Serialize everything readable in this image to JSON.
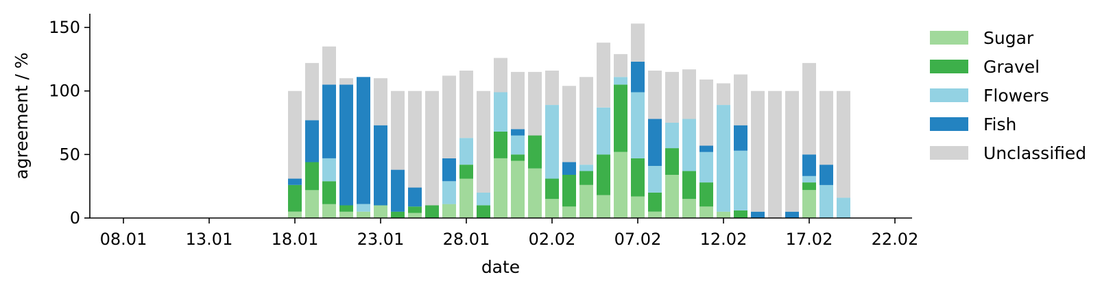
{
  "chart_data": {
    "type": "bar",
    "stacked": true,
    "xlabel": "date",
    "ylabel": "agreement / %",
    "ylim": [
      0,
      160
    ],
    "y_ticks": [
      0,
      50,
      100,
      150
    ],
    "x_ticks": [
      "08.01",
      "13.01",
      "18.01",
      "23.01",
      "28.01",
      "02.02",
      "07.02",
      "12.02",
      "17.02",
      "22.02"
    ],
    "legend_position": "outside-right",
    "categories": [
      "18.01",
      "19.01",
      "20.01",
      "21.01",
      "22.01",
      "23.01",
      "24.01",
      "25.01",
      "26.01",
      "27.01",
      "28.01",
      "29.01",
      "30.01",
      "31.01",
      "01.02",
      "02.02",
      "03.02",
      "04.02",
      "05.02",
      "06.02",
      "07.02",
      "08.02",
      "09.02",
      "10.02",
      "11.02",
      "12.02",
      "13.02",
      "14.02",
      "15.02",
      "16.02",
      "17.02",
      "18.02",
      "19.02"
    ],
    "series": [
      {
        "name": "Sugar",
        "color": "#a1d99b",
        "values": [
          5,
          22,
          11,
          5,
          5,
          10,
          0,
          4,
          0,
          11,
          31,
          0,
          47,
          45,
          39,
          15,
          9,
          26,
          18,
          52,
          17,
          5,
          34,
          15,
          9,
          5,
          0,
          0,
          0,
          0,
          22,
          0,
          0
        ]
      },
      {
        "name": "Gravel",
        "color": "#3db04a",
        "values": [
          21,
          22,
          18,
          5,
          0,
          0,
          5,
          5,
          10,
          0,
          11,
          10,
          21,
          5,
          26,
          16,
          25,
          11,
          32,
          53,
          30,
          15,
          21,
          22,
          19,
          0,
          6,
          0,
          0,
          0,
          6,
          0,
          0
        ]
      },
      {
        "name": "Flowers",
        "color": "#93d2e3",
        "values": [
          0,
          0,
          18,
          0,
          6,
          0,
          0,
          0,
          0,
          18,
          21,
          10,
          31,
          15,
          0,
          58,
          0,
          5,
          37,
          6,
          52,
          21,
          20,
          41,
          24,
          84,
          47,
          0,
          0,
          0,
          5,
          26,
          16
        ]
      },
      {
        "name": "Fish",
        "color": "#2383c1",
        "values": [
          5,
          33,
          58,
          95,
          100,
          63,
          33,
          15,
          0,
          18,
          0,
          0,
          0,
          5,
          0,
          0,
          10,
          0,
          0,
          0,
          24,
          37,
          0,
          0,
          5,
          0,
          20,
          5,
          0,
          5,
          17,
          16,
          0
        ]
      },
      {
        "name": "Unclassified",
        "color": "#d3d3d3",
        "values": [
          69,
          45,
          30,
          5,
          0,
          37,
          62,
          76,
          90,
          65,
          53,
          80,
          27,
          45,
          50,
          27,
          60,
          69,
          51,
          18,
          30,
          38,
          40,
          39,
          52,
          17,
          40,
          95,
          100,
          95,
          72,
          58,
          84
        ]
      }
    ]
  }
}
